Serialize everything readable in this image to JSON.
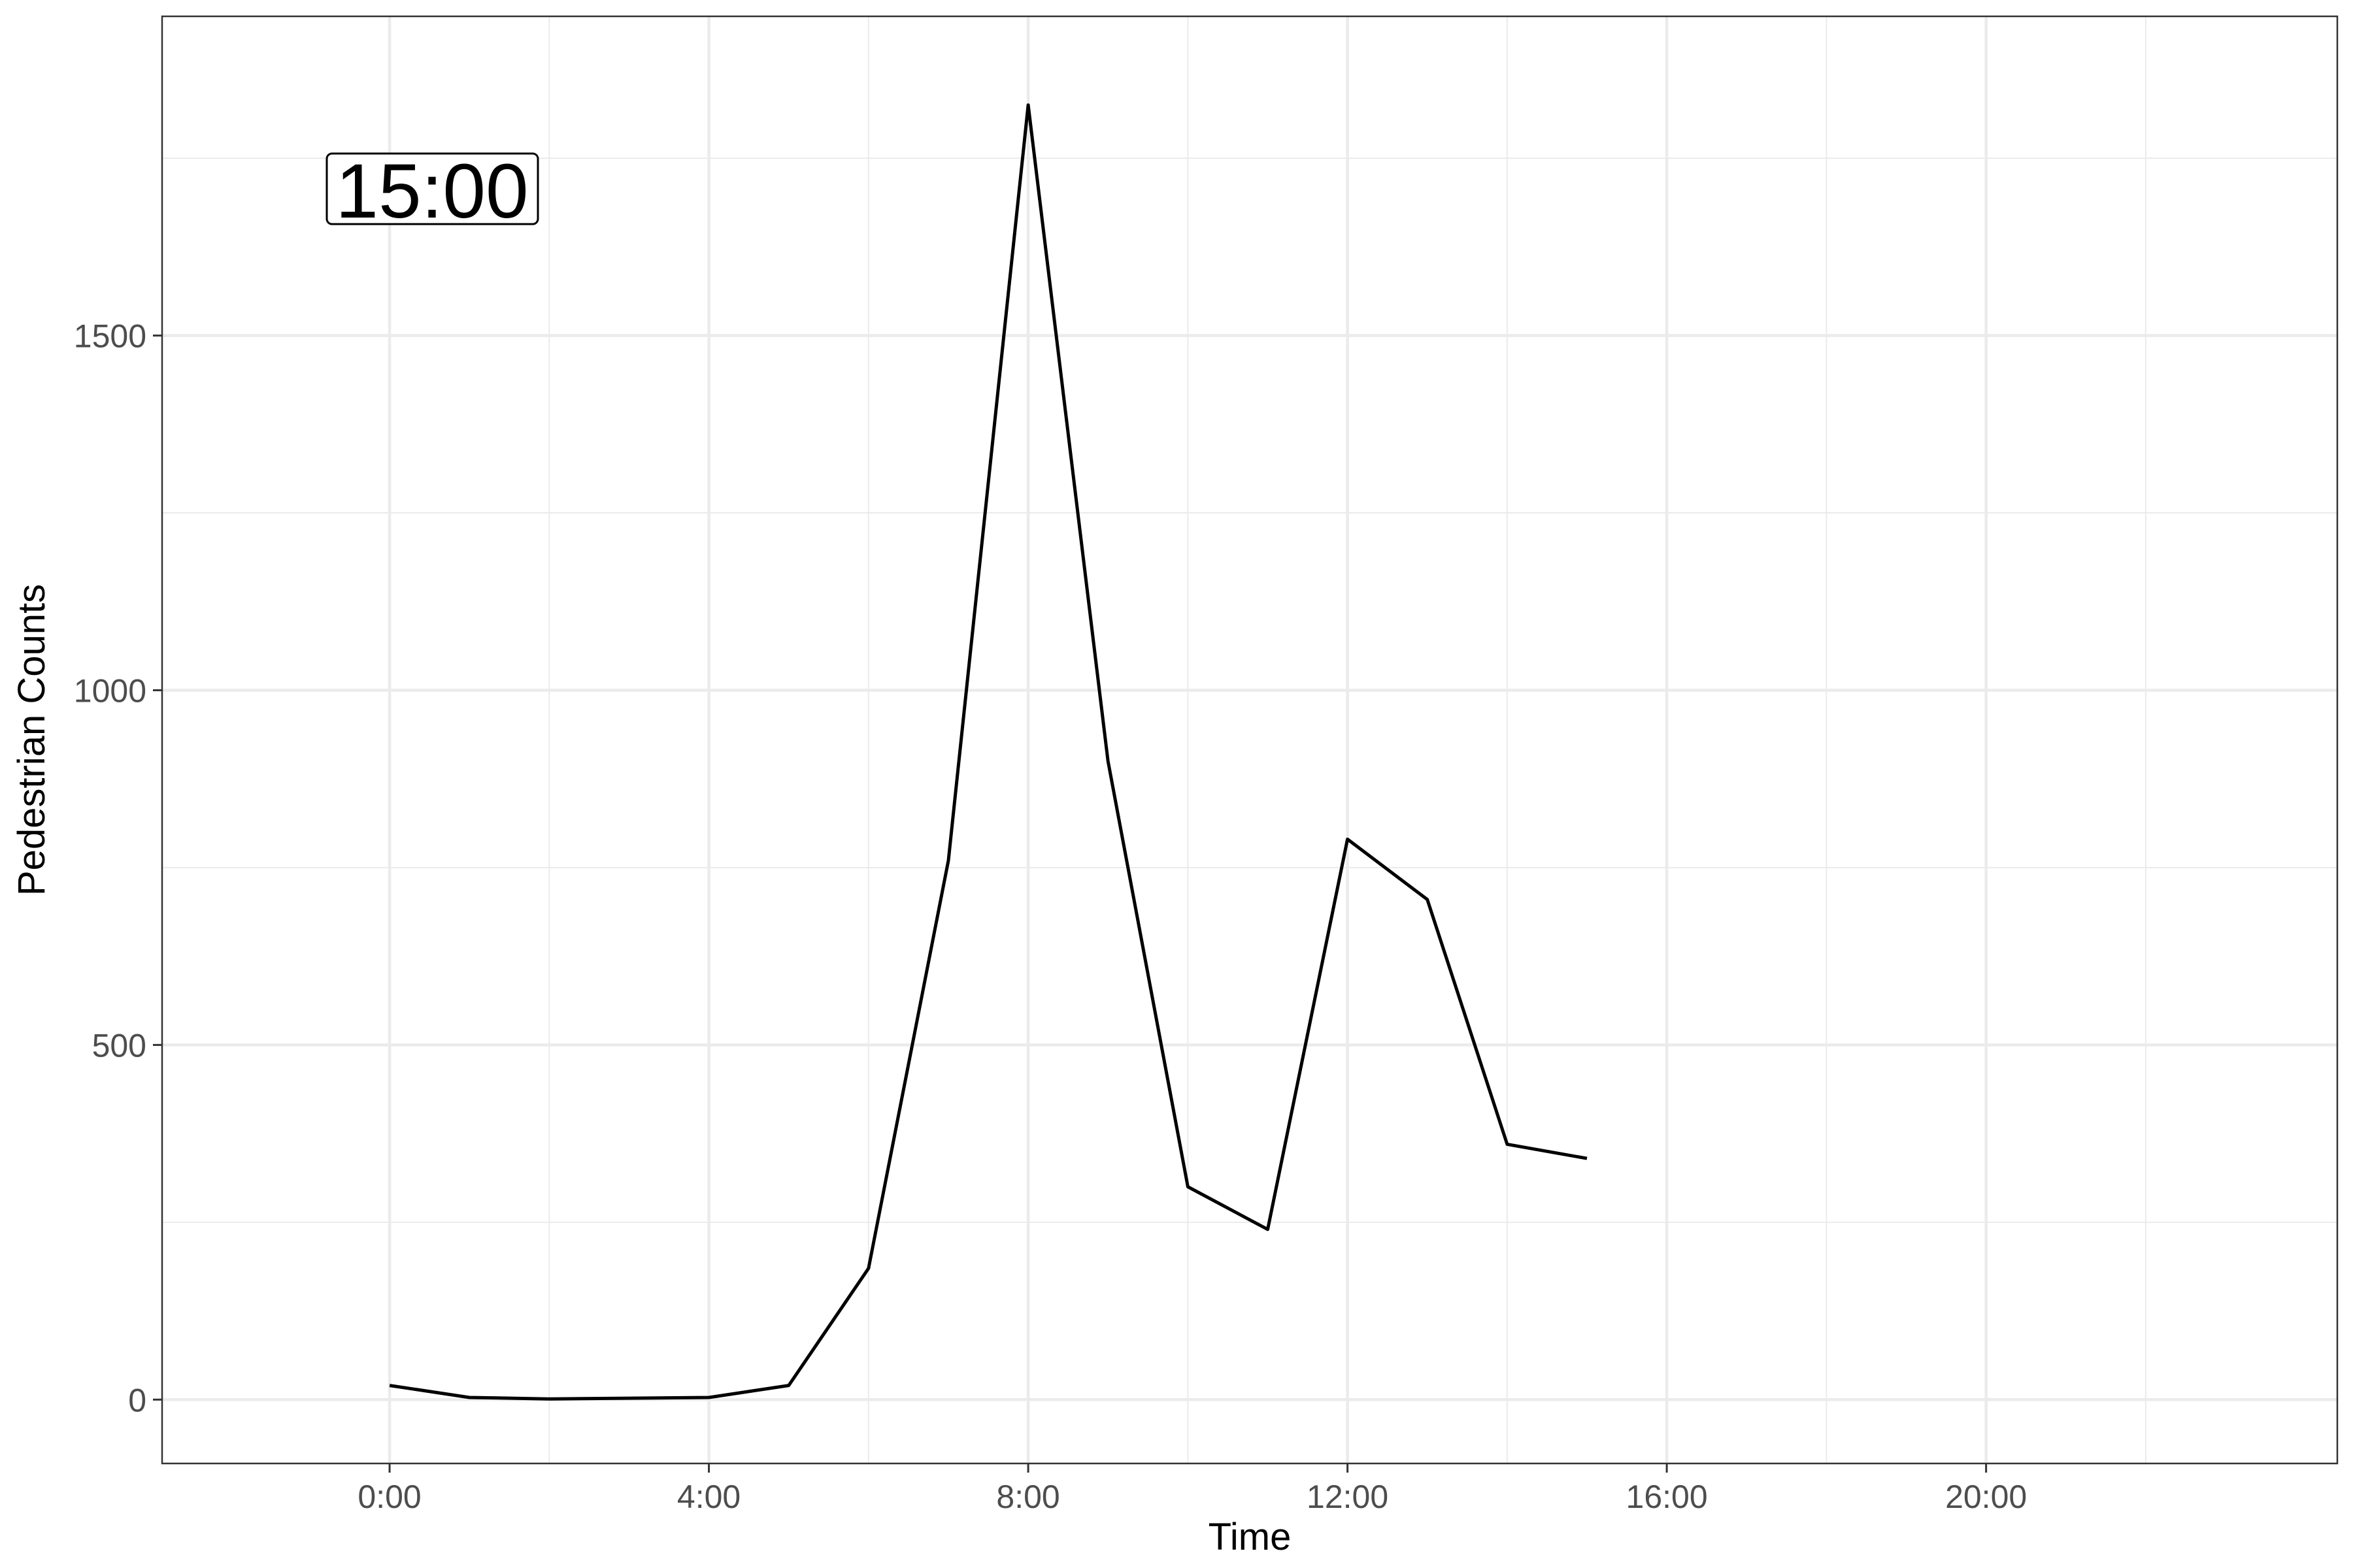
{
  "chart_data": {
    "type": "line",
    "title": "",
    "xlabel": "Time",
    "ylabel": "Pedestrian Counts",
    "annotation": "15:00",
    "x": [
      0,
      1,
      2,
      3,
      4,
      5,
      6,
      7,
      8,
      9,
      10,
      11,
      12,
      13,
      14,
      15
    ],
    "series": [
      {
        "values": [
          20,
          3,
          1,
          2,
          3,
          20,
          185,
          760,
          1825,
          900,
          300,
          240,
          790,
          705,
          360,
          340
        ]
      }
    ],
    "xlim": [
      -2.85,
      24.4
    ],
    "ylim": [
      -90,
      1950
    ],
    "x_ticks": [
      0,
      4,
      8,
      12,
      16,
      20
    ],
    "x_tick_labels": [
      "0:00",
      "4:00",
      "8:00",
      "12:00",
      "16:00",
      "20:00"
    ],
    "x_minor_ticks": [
      2,
      6,
      10,
      14,
      18,
      22
    ],
    "y_ticks": [
      0,
      500,
      1000,
      1500
    ],
    "y_tick_labels": [
      "0",
      "500",
      "1000",
      "1500"
    ],
    "y_minor_ticks": [
      250,
      750,
      1250,
      1750
    ],
    "grid": true,
    "line_color": "#000000",
    "grid_color": "#ebebeb"
  }
}
